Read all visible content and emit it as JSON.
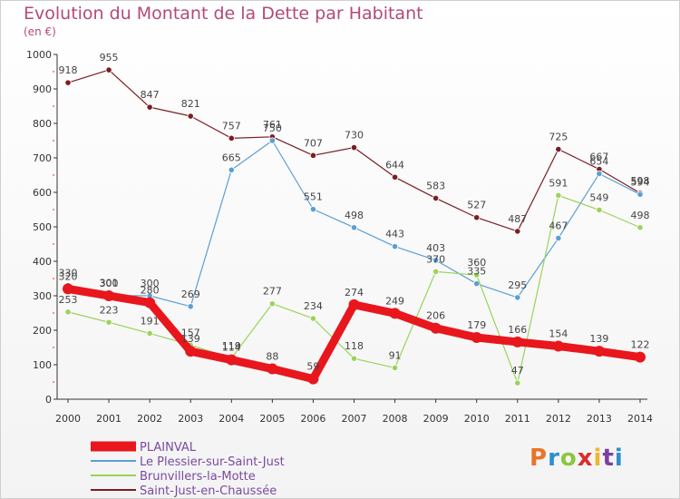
{
  "header": {
    "title": "Evolution du Montant de la Dette par Habitant",
    "unit": "(en €)"
  },
  "logo": {
    "text": "Proxiti",
    "colors": [
      "#e8742a",
      "#2a8fd1",
      "#8cc63f",
      "#d72e2e",
      "#f0b52c",
      "#7b3fa0",
      "#2a8fd1"
    ]
  },
  "chart_data": {
    "type": "line",
    "x": [
      "2000",
      "2001",
      "2002",
      "2003",
      "2004",
      "2005",
      "2006",
      "2007",
      "2008",
      "2009",
      "2010",
      "2011",
      "2012",
      "2013",
      "2014"
    ],
    "ylim": [
      0,
      1000
    ],
    "yticks": [
      "0",
      "100",
      "200",
      "300",
      "400",
      "500",
      "600",
      "700",
      "800",
      "900",
      "1000"
    ],
    "grid": false,
    "legend_position": "bottom-left",
    "series": [
      {
        "name": "Saint-Just-en-Chaussée",
        "color": "#7a1e24",
        "values": [
          918,
          955,
          847,
          821,
          757,
          761,
          707,
          730,
          644,
          583,
          527,
          487,
          725,
          667,
          598
        ]
      },
      {
        "name": "Le Plessier-sur-Saint-Just",
        "color": "#5b9fd4",
        "values": [
          330,
          301,
          300,
          269,
          665,
          750,
          551,
          498,
          443,
          403,
          335,
          295,
          467,
          654,
          594
        ]
      },
      {
        "name": "Brunvillers-la-Motte",
        "color": "#9ad35a",
        "values": [
          253,
          223,
          191,
          157,
          119,
          277,
          234,
          118,
          91,
          370,
          360,
          47,
          591,
          549,
          498
        ]
      },
      {
        "name": "PLAINVAL",
        "color": "#e8171d",
        "values": [
          320,
          300,
          280,
          139,
          114,
          88,
          59,
          274,
          249,
          206,
          179,
          166,
          154,
          139,
          122
        ]
      }
    ]
  }
}
